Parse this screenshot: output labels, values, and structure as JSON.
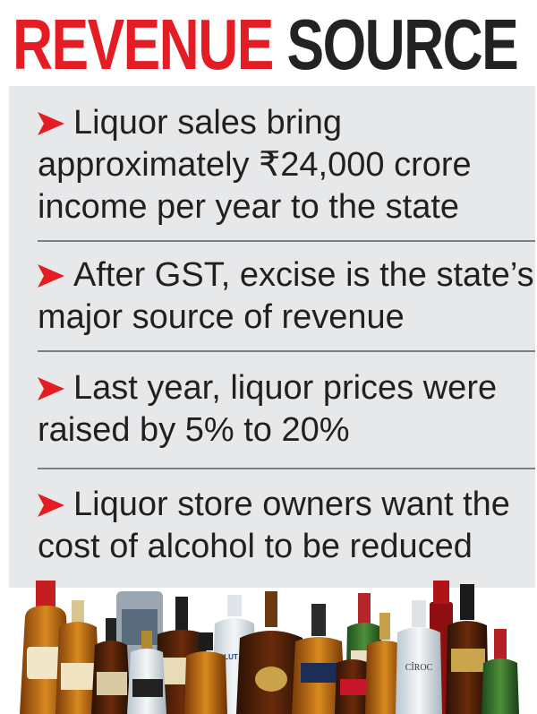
{
  "title": {
    "word1": "REVENUE",
    "word2": "SOURCE"
  },
  "colors": {
    "accent": "#e31d23",
    "panel": "#e7e8ea",
    "text": "#231f20"
  },
  "bullets": [
    {
      "lines": [
        "Liquor sales bring",
        "approximately ₹24,000 crore",
        "income per year to the state"
      ]
    },
    {
      "lines": [
        "After GST, excise is the state’s",
        "major source of revenue"
      ]
    },
    {
      "lines": [
        "Last year, liquor prices were",
        "raised by 5% to 20%"
      ]
    },
    {
      "lines": [
        "Liquor store owners want the",
        "cost of alcohol to be reduced"
      ]
    }
  ],
  "bottle_labels": {
    "vodka": "ABSOLUT VODKA",
    "ciroc": "CÎROC"
  }
}
